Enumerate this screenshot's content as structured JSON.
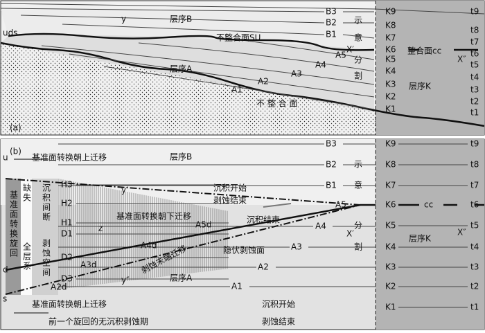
{
  "panel_a": {
    "label": "(a)",
    "uds": "uds",
    "y": "y",
    "sequence_b": "层序B",
    "sequence_a": "层序A",
    "sequence_k": "层序K",
    "unconformity_su": "不整合面SU",
    "unconformity": "不 整 合 面",
    "conformity_cc": "整合面cc",
    "x1": "X′",
    "x2": "X″",
    "b_labels": [
      "B3",
      "B2",
      "B1"
    ],
    "side_labels": [
      "示",
      "意",
      "分",
      "割"
    ],
    "a_labels": [
      "A5",
      "A4",
      "A3",
      "A2",
      "A1"
    ],
    "k_labels": [
      "K9",
      "K8",
      "K7",
      "K6",
      "K5",
      "K4",
      "K3",
      "K2",
      "K1"
    ],
    "t_labels": [
      "t9",
      "t8",
      "t7",
      "t6",
      "t5",
      "t4",
      "t3",
      "t2",
      "t1"
    ]
  },
  "panel_b": {
    "label": "(b)",
    "u": "u",
    "d": "d",
    "s": "s",
    "upper_note": "基准面转换朝上迁移",
    "lower_note": "基准面转换朝上迁移",
    "sequence_b": "层序B",
    "sequence_a": "层序A",
    "sequence_k": "层序K",
    "y1": "y′",
    "y2": "y″",
    "z": "z",
    "cc": "cc",
    "x1": "X′",
    "x2": "X″",
    "deposition_start": "沉积开始",
    "erosion_end": "剥蚀结束",
    "baseline_down": "基准面转换朝下迁移",
    "deposition_end": "沉积结束",
    "erosion_front": "剥蚀末端迁移",
    "hidden_erosion": "隐伏剥蚀面",
    "cycle": "基准面转换旋回",
    "missing": "缺失",
    "whole": "全层系",
    "hiatus": "沉积间断",
    "erosion_space": "剥蚀空间",
    "deposition_start_2": "沉积开始",
    "erosion_end_2": "剥蚀结束",
    "previous": "前一个旋回的无沉积剥蚀期",
    "b_labels": [
      "B3",
      "B2",
      "B1"
    ],
    "side_labels": [
      "示",
      "意",
      "分",
      "割"
    ],
    "a_labels": [
      "A5",
      "A4",
      "A3",
      "A2",
      "A1"
    ],
    "ad_labels": [
      "A5d",
      "A4d",
      "A3d",
      "A2d"
    ],
    "h_labels": [
      "H3",
      "H2",
      "H1"
    ],
    "d_labels": [
      "D1",
      "D2",
      "D3"
    ],
    "k_labels": [
      "K9",
      "K8",
      "K7",
      "K6",
      "K5",
      "K4",
      "K3",
      "K2",
      "K1"
    ],
    "t_labels": [
      "t9",
      "t8",
      "t7",
      "t6",
      "t5",
      "t4",
      "t3",
      "t2",
      "t1"
    ]
  }
}
